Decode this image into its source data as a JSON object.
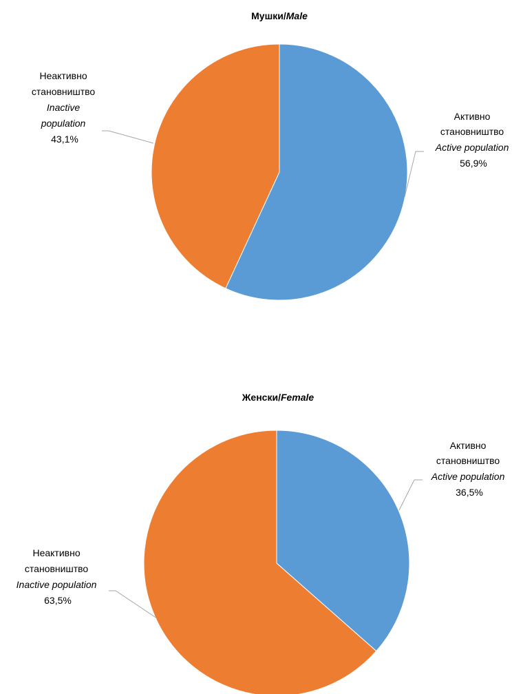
{
  "colors": {
    "active": "#5B9BD5",
    "inactive": "#ED7D31",
    "leader": "#A6A6A6"
  },
  "chart_data": [
    {
      "type": "pie",
      "title": "Мушки/",
      "title_italic": "Male",
      "categories": [
        "Активно становништво / Active population",
        "Неактивно становништво / Inactive population"
      ],
      "values": [
        56.9,
        43.1
      ],
      "legend": "none",
      "labels": {
        "active": {
          "line1": "Активно",
          "line2": "становништво",
          "line3": "Active population",
          "value": "56,9%"
        },
        "inactive": {
          "line1": "Неактивно",
          "line2": "становништво",
          "line3": "Inactive",
          "line4": "population",
          "value": "43,1%"
        }
      }
    },
    {
      "type": "pie",
      "title": "Женски/",
      "title_italic": "Female",
      "categories": [
        "Активно становништво / Active population",
        "Неактивно становништво / Inactive population"
      ],
      "values": [
        36.5,
        63.5
      ],
      "legend": "none",
      "labels": {
        "active": {
          "line1": "Активно",
          "line2": "становништво",
          "line3": "Active population",
          "value": "36,5%"
        },
        "inactive": {
          "line1": "Неактивно",
          "line2": "становништво",
          "line3": "Inactive population",
          "value": "63,5%"
        }
      }
    }
  ]
}
